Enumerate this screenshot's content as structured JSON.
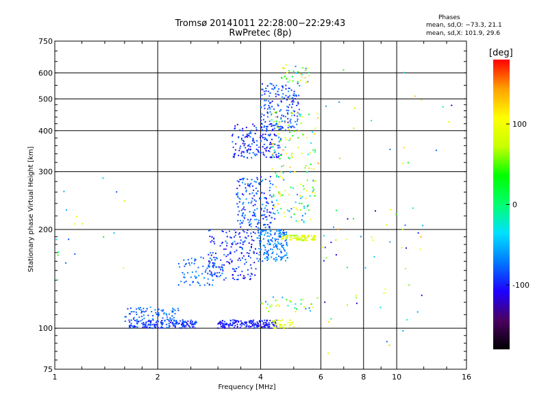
{
  "chart_data": {
    "type": "scatter",
    "title": "Tromsø 20141011 22:28:00−22:29:43",
    "subtitle": "RwPretec (8p)",
    "xlabel": "Frequency [MHz]",
    "ylabel": "Stationary phase Virtual Height [km]",
    "x_scale": "log",
    "y_scale": "log",
    "xlim": [
      1,
      16
    ],
    "ylim": [
      75,
      750
    ],
    "x_ticks": [
      1,
      2,
      4,
      6,
      8,
      10,
      16
    ],
    "x_tick_labels": [
      "1",
      "2",
      "4",
      "6",
      "8",
      "10",
      "16"
    ],
    "y_ticks": [
      75,
      100,
      200,
      300,
      400,
      500,
      600,
      750
    ],
    "y_tick_labels": [
      "75",
      "100",
      "200",
      "300",
      "400",
      "500",
      "600",
      "750"
    ],
    "grid": true,
    "colorbar": {
      "label": "[deg]",
      "ticks": [
        100,
        0,
        -100
      ],
      "tick_labels": [
        "100",
        "0",
        "-100"
      ],
      "range": [
        -180,
        180
      ],
      "colors": [
        "#000000",
        "#4b0060",
        "#1e00ff",
        "#0078ff",
        "#00e0ff",
        "#00ff70",
        "#00ff00",
        "#c8ff00",
        "#ffff00",
        "#ffa000",
        "#ff0000"
      ]
    },
    "stats": {
      "title": "Phases",
      "o_mode": "mean, sd,O: −73.3, 21.1",
      "x_mode": "mean, sd,X: 101.9, 29.6"
    },
    "point_groups": [
      {
        "f": [
          1.65,
          2.6
        ],
        "h": [
          100,
          106
        ],
        "phase": [
          -110,
          -70
        ],
        "density": "high"
      },
      {
        "f": [
          1.6,
          2.3
        ],
        "h": [
          105,
          116
        ],
        "phase": [
          -95,
          -60
        ],
        "density": "medium"
      },
      {
        "f": [
          3.0,
          4.5
        ],
        "h": [
          100,
          106
        ],
        "phase": [
          -115,
          -85
        ],
        "density": "high"
      },
      {
        "f": [
          4.3,
          5.0
        ],
        "h": [
          100,
          106
        ],
        "phase": [
          70,
          110
        ],
        "density": "low"
      },
      {
        "f": [
          2.3,
          3.1
        ],
        "h": [
          135,
          165
        ],
        "phase": [
          -90,
          -60
        ],
        "density": "medium"
      },
      {
        "f": [
          2.8,
          3.9
        ],
        "h": [
          140,
          200
        ],
        "phase": [
          -120,
          -70
        ],
        "density": "high"
      },
      {
        "f": [
          3.9,
          4.8
        ],
        "h": [
          160,
          200
        ],
        "phase": [
          -90,
          -50
        ],
        "density": "high"
      },
      {
        "f": [
          4.6,
          5.8
        ],
        "h": [
          185,
          192
        ],
        "phase": [
          60,
          120
        ],
        "density": "medium"
      },
      {
        "f": [
          3.4,
          4.4
        ],
        "h": [
          200,
          290
        ],
        "phase": [
          -110,
          -60
        ],
        "density": "high"
      },
      {
        "f": [
          4.3,
          5.8
        ],
        "h": [
          210,
          300
        ],
        "phase": [
          -80,
          130
        ],
        "density": "medium"
      },
      {
        "f": [
          3.3,
          4.6
        ],
        "h": [
          330,
          420
        ],
        "phase": [
          -120,
          -70
        ],
        "density": "high"
      },
      {
        "f": [
          4.0,
          5.2
        ],
        "h": [
          400,
          560
        ],
        "phase": [
          -110,
          -60
        ],
        "density": "high"
      },
      {
        "f": [
          4.3,
          5.9
        ],
        "h": [
          300,
          460
        ],
        "phase": [
          -40,
          150
        ],
        "density": "medium"
      },
      {
        "f": [
          4.6,
          5.6
        ],
        "h": [
          560,
          640
        ],
        "phase": [
          -70,
          130
        ],
        "density": "low"
      },
      {
        "f": [
          4.0,
          5.9
        ],
        "h": [
          112,
          125
        ],
        "phase": [
          -80,
          120
        ],
        "density": "low"
      },
      {
        "f": [
          6.0,
          12.0
        ],
        "h": [
          150,
          240
        ],
        "phase": [
          -120,
          150
        ],
        "density": "low"
      },
      {
        "f": [
          6.0,
          15.0
        ],
        "h": [
          300,
          650
        ],
        "phase": [
          -120,
          150
        ],
        "density": "sparse"
      },
      {
        "f": [
          6.0,
          12.0
        ],
        "h": [
          80,
          140
        ],
        "phase": [
          -120,
          150
        ],
        "density": "sparse"
      },
      {
        "f": [
          1.0,
          1.6
        ],
        "h": [
          140,
          290
        ],
        "phase": [
          -120,
          110
        ],
        "density": "sparse"
      }
    ]
  }
}
